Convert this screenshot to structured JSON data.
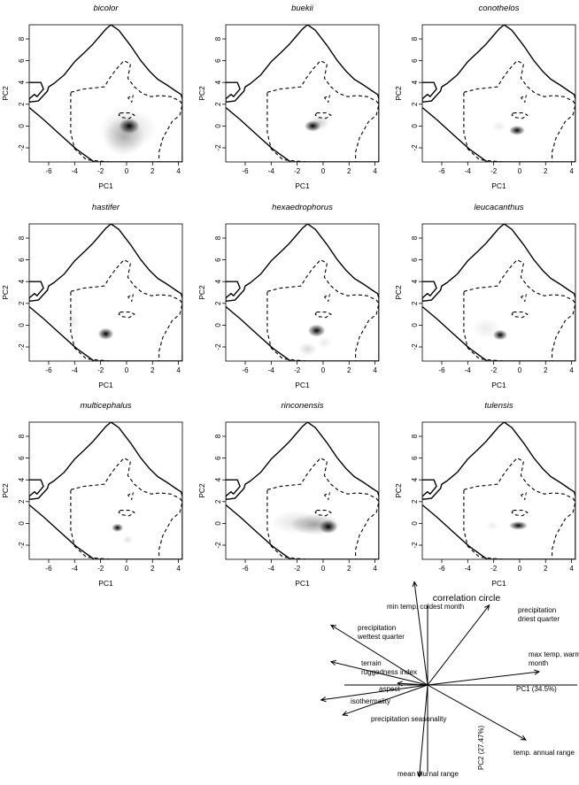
{
  "chart_data": [
    {
      "type": "heatmap",
      "title": "bicolor",
      "xlabel": "PC1",
      "ylabel": "PC2",
      "xlim": [
        -7.5,
        4.3
      ],
      "ylim": [
        -3.3,
        9.3
      ],
      "xticks": [
        -6,
        -4,
        -2,
        0,
        2,
        4
      ],
      "yticks": [
        -2,
        0,
        2,
        4,
        6,
        8
      ],
      "density": [
        {
          "x": 0.2,
          "y": 0.0,
          "sx": 0.5,
          "sy": 0.45,
          "w": 1.0
        },
        {
          "x": -0.2,
          "y": -1.0,
          "sx": 1.0,
          "sy": 1.1,
          "w": 0.25
        },
        {
          "x": 0.1,
          "y": -0.3,
          "sx": 1.4,
          "sy": 1.2,
          "w": 0.15
        }
      ]
    },
    {
      "type": "heatmap",
      "title": "buekii",
      "xlabel": "PC1",
      "ylabel": "PC2",
      "xlim": [
        -7.5,
        4.3
      ],
      "ylim": [
        -3.3,
        9.3
      ],
      "xticks": [
        -6,
        -4,
        -2,
        0,
        2,
        4
      ],
      "yticks": [
        -2,
        0,
        2,
        4,
        6,
        8
      ],
      "density": [
        {
          "x": -0.8,
          "y": 0.0,
          "sx": 0.4,
          "sy": 0.32,
          "w": 1.0
        },
        {
          "x": -0.3,
          "y": 0.3,
          "sx": 0.5,
          "sy": 0.4,
          "w": 0.2
        }
      ]
    },
    {
      "type": "heatmap",
      "title": "conothelos",
      "xlabel": "PC1",
      "ylabel": "PC2",
      "xlim": [
        -7.5,
        4.3
      ],
      "ylim": [
        -3.3,
        9.3
      ],
      "xticks": [
        -6,
        -4,
        -2,
        0,
        2,
        4
      ],
      "yticks": [
        -2,
        0,
        2,
        4,
        6,
        8
      ],
      "density": [
        {
          "x": -0.2,
          "y": -0.4,
          "sx": 0.38,
          "sy": 0.28,
          "w": 1.0
        },
        {
          "x": -1.6,
          "y": 0.0,
          "sx": 0.35,
          "sy": 0.3,
          "w": 0.08
        }
      ]
    },
    {
      "type": "heatmap",
      "title": "hastifer",
      "xlabel": "PC1",
      "ylabel": "PC2",
      "xlim": [
        -7.5,
        4.3
      ],
      "ylim": [
        -3.3,
        9.3
      ],
      "xticks": [
        -6,
        -4,
        -2,
        0,
        2,
        4
      ],
      "yticks": [
        -2,
        0,
        2,
        4,
        6,
        8
      ],
      "density": [
        {
          "x": -1.6,
          "y": -0.8,
          "sx": 0.38,
          "sy": 0.34,
          "w": 1.0
        },
        {
          "x": -4.2,
          "y": 0.3,
          "sx": 0.4,
          "sy": 0.5,
          "w": 0.08
        }
      ]
    },
    {
      "type": "heatmap",
      "title": "hexaedrophorus",
      "xlabel": "PC1",
      "ylabel": "PC2",
      "xlim": [
        -7.5,
        4.3
      ],
      "ylim": [
        -3.3,
        9.3
      ],
      "xticks": [
        -6,
        -4,
        -2,
        0,
        2,
        4
      ],
      "yticks": [
        -2,
        0,
        2,
        4,
        6,
        8
      ],
      "density": [
        {
          "x": -0.5,
          "y": -0.5,
          "sx": 0.42,
          "sy": 0.36,
          "w": 1.0
        },
        {
          "x": -1.2,
          "y": -2.2,
          "sx": 0.45,
          "sy": 0.4,
          "w": 0.15
        },
        {
          "x": 0.1,
          "y": -1.6,
          "sx": 0.35,
          "sy": 0.35,
          "w": 0.08
        }
      ]
    },
    {
      "type": "heatmap",
      "title": "leucacanthus",
      "xlabel": "PC1",
      "ylabel": "PC2",
      "xlim": [
        -7.5,
        4.3
      ],
      "ylim": [
        -3.3,
        9.3
      ],
      "xticks": [
        -6,
        -4,
        -2,
        0,
        2,
        4
      ],
      "yticks": [
        -2,
        0,
        2,
        4,
        6,
        8
      ],
      "density": [
        {
          "x": -1.5,
          "y": -0.9,
          "sx": 0.35,
          "sy": 0.3,
          "w": 1.0
        },
        {
          "x": -2.6,
          "y": -0.3,
          "sx": 0.7,
          "sy": 0.6,
          "w": 0.08
        }
      ]
    },
    {
      "type": "heatmap",
      "title": "multicephalus",
      "xlabel": "PC1",
      "ylabel": "PC2",
      "xlim": [
        -7.5,
        4.3
      ],
      "ylim": [
        -3.3,
        9.3
      ],
      "xticks": [
        -6,
        -4,
        -2,
        0,
        2,
        4
      ],
      "yticks": [
        -2,
        0,
        2,
        4,
        6,
        8
      ],
      "density": [
        {
          "x": -0.7,
          "y": -0.4,
          "sx": 0.28,
          "sy": 0.24,
          "w": 1.0
        },
        {
          "x": 0.1,
          "y": -1.5,
          "sx": 0.25,
          "sy": 0.25,
          "w": 0.12
        }
      ]
    },
    {
      "type": "heatmap",
      "title": "rinconensis",
      "xlabel": "PC1",
      "ylabel": "PC2",
      "xlim": [
        -7.5,
        4.3
      ],
      "ylim": [
        -3.3,
        9.3
      ],
      "xticks": [
        -6,
        -4,
        -2,
        0,
        2,
        4
      ],
      "yticks": [
        -2,
        0,
        2,
        4,
        6,
        8
      ],
      "density": [
        {
          "x": 0.4,
          "y": -0.3,
          "sx": 0.45,
          "sy": 0.4,
          "w": 1.0
        },
        {
          "x": -0.6,
          "y": -0.1,
          "sx": 1.2,
          "sy": 0.6,
          "w": 0.35
        },
        {
          "x": -2.0,
          "y": 0.1,
          "sx": 1.3,
          "sy": 0.7,
          "w": 0.12
        }
      ]
    },
    {
      "type": "heatmap",
      "title": "tulensis",
      "xlabel": "PC1",
      "ylabel": "PC2",
      "xlim": [
        -7.5,
        4.3
      ],
      "ylim": [
        -3.3,
        9.3
      ],
      "xticks": [
        -6,
        -4,
        -2,
        0,
        2,
        4
      ],
      "yticks": [
        -2,
        0,
        2,
        4,
        6,
        8
      ],
      "density": [
        {
          "x": -0.1,
          "y": -0.2,
          "sx": 0.45,
          "sy": 0.25,
          "w": 1.0
        },
        {
          "x": -2.1,
          "y": -0.2,
          "sx": 0.3,
          "sy": 0.25,
          "w": 0.08
        }
      ]
    },
    {
      "type": "scatter",
      "title": "correlation circle",
      "xlabel": "PC1 (34.5%)",
      "ylabel": "PC2 (27.47%)",
      "vectors": [
        {
          "label": "min temp. coldest month",
          "x": -0.08,
          "y": 0.62
        },
        {
          "label": "precipitation driest quarter",
          "x": 0.37,
          "y": 0.48
        },
        {
          "label": "precipitation wettest quarter",
          "x": -0.58,
          "y": 0.36
        },
        {
          "label": "max temp. warmest month",
          "x": 0.67,
          "y": 0.08
        },
        {
          "label": "terrain ruggedness index",
          "x": -0.58,
          "y": 0.14
        },
        {
          "label": "aspect",
          "x": -0.18,
          "y": 0.01
        },
        {
          "label": "isothermality",
          "x": -0.64,
          "y": -0.09
        },
        {
          "label": "precipitation seasonality",
          "x": -0.51,
          "y": -0.18
        },
        {
          "label": "temp. annual range",
          "x": 0.59,
          "y": -0.33
        },
        {
          "label": "mean diurnal range",
          "x": -0.05,
          "y": -0.55
        }
      ]
    }
  ]
}
